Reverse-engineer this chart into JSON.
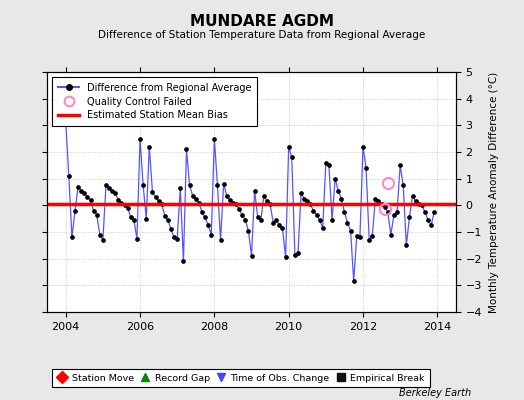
{
  "title": "MUNDARE AGDM",
  "subtitle": "Difference of Station Temperature Data from Regional Average",
  "ylabel": "Monthly Temperature Anomaly Difference (°C)",
  "xlabel_bottom": "Berkeley Earth",
  "xlim": [
    2003.5,
    2014.5
  ],
  "ylim": [
    -4,
    5
  ],
  "yticks": [
    -4,
    -3,
    -2,
    -1,
    0,
    1,
    2,
    3,
    4,
    5
  ],
  "xticks": [
    2004,
    2006,
    2008,
    2010,
    2012,
    2014
  ],
  "bias": 0.05,
  "background_color": "#e8e8e8",
  "plot_bg_color": "#ffffff",
  "line_color": "#5555ff",
  "bias_color": "#ff0000",
  "qc_color": "#ff88cc",
  "marker_color": "#000000",
  "time_series": [
    [
      2004.0,
      3.1
    ],
    [
      2004.083,
      1.1
    ],
    [
      2004.167,
      -1.2
    ],
    [
      2004.25,
      -0.2
    ],
    [
      2004.333,
      0.7
    ],
    [
      2004.417,
      0.55
    ],
    [
      2004.5,
      0.45
    ],
    [
      2004.583,
      0.3
    ],
    [
      2004.667,
      0.2
    ],
    [
      2004.75,
      -0.2
    ],
    [
      2004.833,
      -0.35
    ],
    [
      2004.917,
      -1.1
    ],
    [
      2005.0,
      -1.3
    ],
    [
      2005.083,
      0.75
    ],
    [
      2005.167,
      0.65
    ],
    [
      2005.25,
      0.55
    ],
    [
      2005.333,
      0.45
    ],
    [
      2005.417,
      0.2
    ],
    [
      2005.5,
      0.1
    ],
    [
      2005.583,
      0.0
    ],
    [
      2005.667,
      -0.1
    ],
    [
      2005.75,
      -0.45
    ],
    [
      2005.833,
      -0.55
    ],
    [
      2005.917,
      -1.25
    ],
    [
      2006.0,
      2.5
    ],
    [
      2006.083,
      0.75
    ],
    [
      2006.167,
      -0.5
    ],
    [
      2006.25,
      2.2
    ],
    [
      2006.333,
      0.5
    ],
    [
      2006.417,
      0.3
    ],
    [
      2006.5,
      0.15
    ],
    [
      2006.583,
      0.05
    ],
    [
      2006.667,
      -0.4
    ],
    [
      2006.75,
      -0.55
    ],
    [
      2006.833,
      -0.9
    ],
    [
      2006.917,
      -1.2
    ],
    [
      2007.0,
      -1.25
    ],
    [
      2007.083,
      0.65
    ],
    [
      2007.167,
      -2.1
    ],
    [
      2007.25,
      2.1
    ],
    [
      2007.333,
      0.75
    ],
    [
      2007.417,
      0.35
    ],
    [
      2007.5,
      0.25
    ],
    [
      2007.583,
      0.1
    ],
    [
      2007.667,
      -0.25
    ],
    [
      2007.75,
      -0.45
    ],
    [
      2007.833,
      -0.75
    ],
    [
      2007.917,
      -1.1
    ],
    [
      2008.0,
      2.5
    ],
    [
      2008.083,
      0.75
    ],
    [
      2008.167,
      -1.3
    ],
    [
      2008.25,
      0.8
    ],
    [
      2008.333,
      0.35
    ],
    [
      2008.417,
      0.2
    ],
    [
      2008.5,
      0.1
    ],
    [
      2008.583,
      0.05
    ],
    [
      2008.667,
      -0.15
    ],
    [
      2008.75,
      -0.35
    ],
    [
      2008.833,
      -0.55
    ],
    [
      2008.917,
      -0.95
    ],
    [
      2009.0,
      -1.9
    ],
    [
      2009.083,
      0.55
    ],
    [
      2009.167,
      -0.45
    ],
    [
      2009.25,
      -0.55
    ],
    [
      2009.333,
      0.35
    ],
    [
      2009.417,
      0.15
    ],
    [
      2009.5,
      0.05
    ],
    [
      2009.583,
      -0.65
    ],
    [
      2009.667,
      -0.55
    ],
    [
      2009.75,
      -0.75
    ],
    [
      2009.833,
      -0.85
    ],
    [
      2009.917,
      -1.95
    ],
    [
      2010.0,
      2.2
    ],
    [
      2010.083,
      1.8
    ],
    [
      2010.167,
      -1.85
    ],
    [
      2010.25,
      -1.8
    ],
    [
      2010.333,
      0.45
    ],
    [
      2010.417,
      0.25
    ],
    [
      2010.5,
      0.15
    ],
    [
      2010.583,
      0.05
    ],
    [
      2010.667,
      -0.2
    ],
    [
      2010.75,
      -0.35
    ],
    [
      2010.833,
      -0.55
    ],
    [
      2010.917,
      -0.85
    ],
    [
      2011.0,
      1.6
    ],
    [
      2011.083,
      1.5
    ],
    [
      2011.167,
      -0.55
    ],
    [
      2011.25,
      1.0
    ],
    [
      2011.333,
      0.55
    ],
    [
      2011.417,
      0.25
    ],
    [
      2011.5,
      -0.25
    ],
    [
      2011.583,
      -0.65
    ],
    [
      2011.667,
      -0.95
    ],
    [
      2011.75,
      -2.85
    ],
    [
      2011.833,
      -1.15
    ],
    [
      2011.917,
      -1.2
    ],
    [
      2012.0,
      2.2
    ],
    [
      2012.083,
      1.4
    ],
    [
      2012.167,
      -1.3
    ],
    [
      2012.25,
      -1.15
    ],
    [
      2012.333,
      0.25
    ],
    [
      2012.417,
      0.15
    ],
    [
      2012.5,
      0.05
    ],
    [
      2012.583,
      -0.05
    ],
    [
      2012.667,
      -0.25
    ],
    [
      2012.75,
      -1.1
    ],
    [
      2012.833,
      -0.35
    ],
    [
      2012.917,
      -0.25
    ],
    [
      2013.0,
      1.5
    ],
    [
      2013.083,
      0.75
    ],
    [
      2013.167,
      -1.5
    ],
    [
      2013.25,
      -0.45
    ],
    [
      2013.333,
      0.35
    ],
    [
      2013.417,
      0.15
    ],
    [
      2013.5,
      0.05
    ],
    [
      2013.583,
      0.0
    ],
    [
      2013.667,
      -0.25
    ],
    [
      2013.75,
      -0.55
    ],
    [
      2013.833,
      -0.75
    ],
    [
      2013.917,
      -0.25
    ]
  ],
  "qc_failed_points": [
    [
      2012.583,
      -0.15
    ],
    [
      2012.667,
      0.85
    ]
  ],
  "legend1_items": [
    {
      "label": "Difference from Regional Average"
    },
    {
      "label": "Quality Control Failed"
    },
    {
      "label": "Estimated Station Mean Bias"
    }
  ],
  "legend2_items": [
    {
      "label": "Station Move",
      "color": "#ff0000",
      "marker": "D"
    },
    {
      "label": "Record Gap",
      "color": "#008800",
      "marker": "^"
    },
    {
      "label": "Time of Obs. Change",
      "color": "#4444ff",
      "marker": "v"
    },
    {
      "label": "Empirical Break",
      "color": "#111111",
      "marker": "s"
    }
  ]
}
